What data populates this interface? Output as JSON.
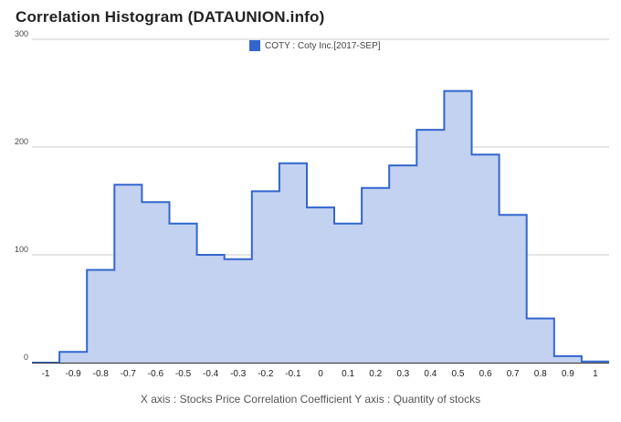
{
  "header": {
    "title": "Correlation Histogram (DATAUNION.info)"
  },
  "legend": {
    "label": "COTY : Coty Inc.[2017-SEP]"
  },
  "caption": "X axis : Stocks Price Correlation Coefficient  Y axis : Quantity of stocks",
  "colors": {
    "line": "#3366cc",
    "fill": "#c3d2f0",
    "grid": "#cccccc",
    "axis": "#333333",
    "label": "#444444"
  },
  "chart_data": {
    "type": "area",
    "step": true,
    "x": [
      -1.0,
      -0.9,
      -0.8,
      -0.7,
      -0.6,
      -0.5,
      -0.4,
      -0.3,
      -0.2,
      -0.1,
      0.0,
      0.1,
      0.2,
      0.3,
      0.4,
      0.5,
      0.6,
      0.7,
      0.8,
      0.9,
      1.0
    ],
    "series": [
      {
        "name": "COTY : Coty Inc.[2017-SEP]",
        "values": [
          0,
          10,
          86,
          165,
          149,
          129,
          100,
          96,
          159,
          185,
          144,
          129,
          162,
          183,
          216,
          252,
          193,
          137,
          41,
          6,
          1
        ]
      }
    ],
    "xlim": [
      -1.05,
      1.05
    ],
    "ylim": [
      0,
      300
    ],
    "x_ticks": [
      "-1",
      "-0.9",
      "-0.8",
      "-0.7",
      "-0.6",
      "-0.5",
      "-0.4",
      "-0.3",
      "-0.2",
      "-0.1",
      "0",
      "0.1",
      "0.2",
      "0.3",
      "0.4",
      "0.5",
      "0.6",
      "0.7",
      "0.8",
      "0.9",
      "1"
    ],
    "y_ticks": [
      "0",
      "100",
      "200",
      "300"
    ],
    "grid": true,
    "legend_position": "top"
  }
}
